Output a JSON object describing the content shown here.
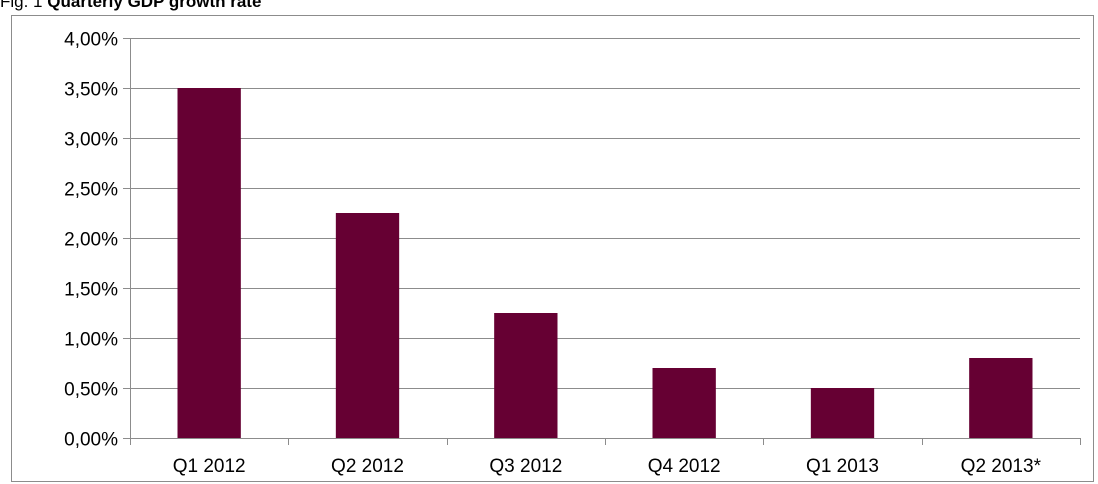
{
  "caption": {
    "prefix": "Fig. 1",
    "title": "Quarterly GDP growth rate"
  },
  "colors": {
    "bar": "#660033",
    "grid": "#8c8c8c",
    "axis": "#8c8c8c",
    "frame": "#8c8c8c"
  },
  "chart_data": {
    "type": "bar",
    "title": "Quarterly GDP growth rate",
    "categories": [
      "Q1 2012",
      "Q2 2012",
      "Q3 2012",
      "Q4 2012",
      "Q1 2013",
      "Q2 2013*"
    ],
    "values": [
      3.5,
      2.25,
      1.25,
      0.7,
      0.5,
      0.8
    ],
    "ylim": [
      0,
      4
    ],
    "yticks": [
      0,
      0.5,
      1,
      1.5,
      2,
      2.5,
      3,
      3.5,
      4
    ],
    "ytick_labels": [
      "0,00%",
      "0,50%",
      "1,00%",
      "1,50%",
      "2,00%",
      "2,50%",
      "3,00%",
      "3,50%",
      "4,00%"
    ],
    "y_unit": "%",
    "grid": true,
    "legend": "none",
    "xlabel": "",
    "ylabel": ""
  }
}
